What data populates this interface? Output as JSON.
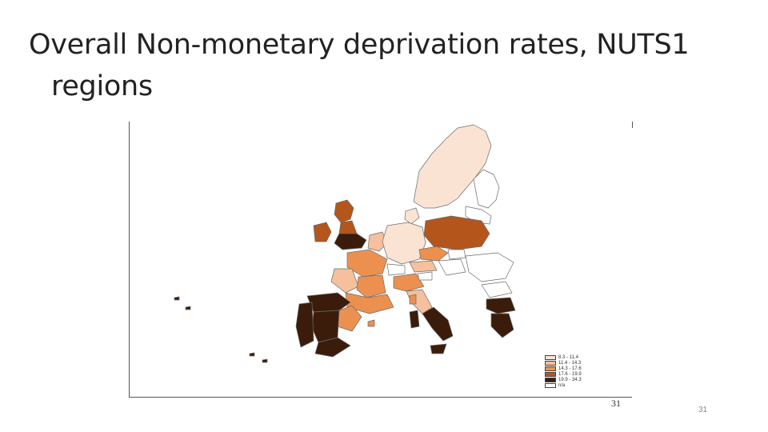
{
  "slide": {
    "title_line1": "Overall Non-monetary deprivation rates, NUTS1",
    "title_line2": "regions",
    "map_page_number": "31",
    "slide_number": "31"
  },
  "legend": {
    "items": [
      {
        "label": "8.3 - 11.4",
        "color": "#fbe3d3"
      },
      {
        "label": "11.4 - 14.3",
        "color": "#f6c09c"
      },
      {
        "label": "14.3 - 17.6",
        "color": "#ec9050"
      },
      {
        "label": "17.6 - 19.9",
        "color": "#b4561b"
      },
      {
        "label": "19.9 - 34.3",
        "color": "#3b1c0a"
      },
      {
        "label": "n/a",
        "color": "#ffffff"
      }
    ]
  }
}
